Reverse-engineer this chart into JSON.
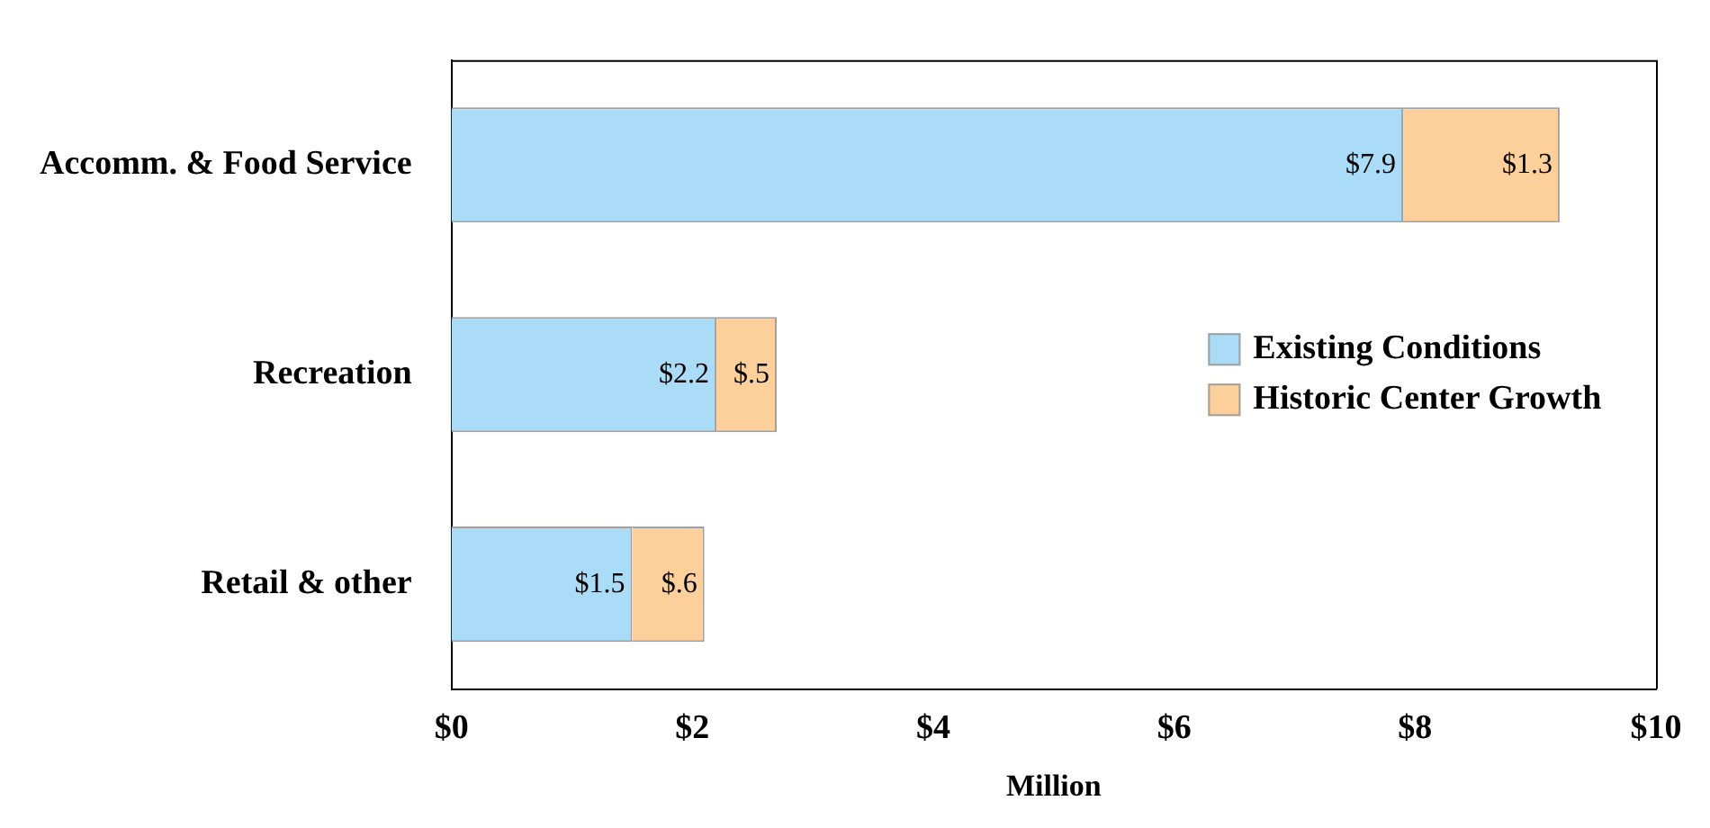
{
  "chart_data": {
    "type": "bar",
    "orientation": "horizontal",
    "stacked": true,
    "xlabel": "Million",
    "categories": [
      "Accomm. & Food Service",
      "Recreation",
      "Retail & other"
    ],
    "series": [
      {
        "name": "Existing Conditions",
        "color": "#aadcf8",
        "values": [
          7.9,
          2.2,
          1.5
        ],
        "value_labels": [
          "$7.9",
          "$2.2",
          "$1.5"
        ]
      },
      {
        "name": "Historic Center Growth",
        "color": "#fdcf9b",
        "values": [
          1.3,
          0.5,
          0.6
        ],
        "value_labels": [
          "$1.3",
          "$.5",
          "$.6"
        ]
      }
    ],
    "xlim": [
      0,
      10
    ],
    "xticks": [
      {
        "value": 0,
        "label": "$0"
      },
      {
        "value": 2,
        "label": "$2"
      },
      {
        "value": 4,
        "label": "$4"
      },
      {
        "value": 6,
        "label": "$6"
      },
      {
        "value": 8,
        "label": "$8"
      },
      {
        "value": 10,
        "label": "$10"
      }
    ],
    "grid": false,
    "legend": "right"
  }
}
